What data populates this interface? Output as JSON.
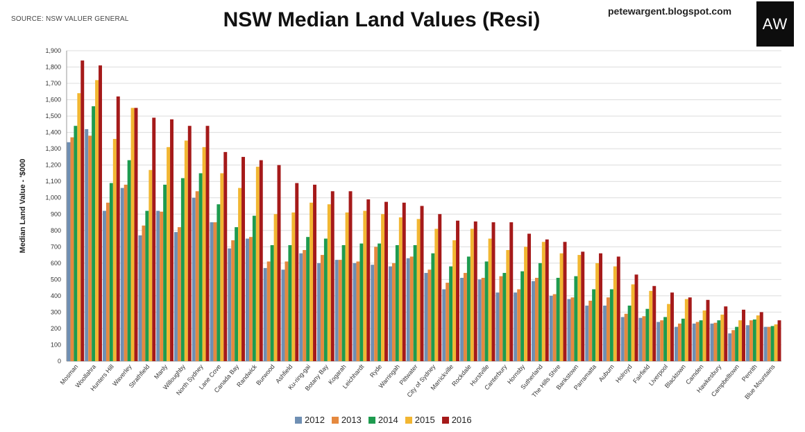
{
  "header": {
    "source": "SOURCE: NSW VALUER GENERAL",
    "title": "NSW Median Land Values (Resi)",
    "blog": "petewargent.blogspot.com",
    "logo": "AW"
  },
  "colors": {
    "2012": "#6f8fb3",
    "2013": "#e5893f",
    "2014": "#1e9b4f",
    "2015": "#f2b632",
    "2016": "#a51a1a"
  },
  "chart_data": {
    "type": "bar",
    "title": "NSW Median Land Values (Resi)",
    "xlabel": "",
    "ylabel": "Median Land Value - '$000",
    "ylim": [
      0,
      1900
    ],
    "ytick_step": 100,
    "grid": true,
    "legend_position": "bottom",
    "categories": [
      "Mosman",
      "Woollahra",
      "Hunters Hill",
      "Waverley",
      "Strathfield",
      "Manly",
      "Willoughby",
      "North Sydney",
      "Lane Cove",
      "Canada Bay",
      "Randwick",
      "Burwood",
      "Ashfield",
      "Ku-ring-gai",
      "Botany Bay",
      "Kogarah",
      "Leichhardt",
      "Ryde",
      "Warringah",
      "Pittwater",
      "City of Sydney",
      "Marrickville",
      "Rockdale",
      "Hurstville",
      "Canterbury",
      "Hornsby",
      "Sutherland",
      "The Hills Shire",
      "Bankstown",
      "Parramatta",
      "Auburn",
      "Holroyd",
      "Fairfield",
      "Liverpool",
      "Blacktown",
      "Camden",
      "Hawkesbury",
      "Campbelltown",
      "Penrith",
      "Blue Mountains"
    ],
    "series": [
      {
        "name": "2012",
        "values": [
          1340,
          1420,
          920,
          1060,
          770,
          920,
          790,
          1000,
          850,
          690,
          750,
          570,
          560,
          660,
          600,
          620,
          600,
          590,
          580,
          630,
          540,
          440,
          510,
          500,
          420,
          420,
          490,
          400,
          380,
          340,
          340,
          270,
          265,
          240,
          210,
          230,
          230,
          170,
          220,
          210
        ]
      },
      {
        "name": "2013",
        "values": [
          1370,
          1380,
          970,
          1080,
          830,
          915,
          820,
          1040,
          850,
          740,
          760,
          610,
          610,
          680,
          650,
          620,
          610,
          700,
          600,
          640,
          560,
          480,
          540,
          510,
          520,
          440,
          510,
          410,
          390,
          370,
          390,
          290,
          275,
          250,
          230,
          240,
          235,
          190,
          250,
          210
        ]
      },
      {
        "name": "2014",
        "values": [
          1440,
          1560,
          1090,
          1230,
          920,
          1080,
          1120,
          1150,
          960,
          820,
          890,
          710,
          710,
          760,
          750,
          710,
          720,
          720,
          710,
          710,
          660,
          580,
          640,
          610,
          540,
          550,
          600,
          510,
          520,
          440,
          440,
          340,
          320,
          270,
          260,
          250,
          250,
          210,
          255,
          215
        ]
      },
      {
        "name": "2015",
        "values": [
          1640,
          1720,
          1360,
          1550,
          1170,
          1310,
          1350,
          1310,
          1150,
          1060,
          1190,
          900,
          910,
          970,
          960,
          910,
          920,
          900,
          880,
          870,
          810,
          740,
          810,
          750,
          680,
          700,
          730,
          660,
          650,
          600,
          580,
          470,
          430,
          350,
          380,
          310,
          285,
          250,
          280,
          225
        ]
      },
      {
        "name": "2016",
        "values": [
          1840,
          1810,
          1620,
          1550,
          1490,
          1480,
          1440,
          1440,
          1280,
          1250,
          1230,
          1200,
          1090,
          1080,
          1040,
          1040,
          990,
          975,
          970,
          950,
          900,
          860,
          855,
          850,
          850,
          780,
          745,
          730,
          670,
          660,
          640,
          530,
          460,
          420,
          390,
          375,
          335,
          315,
          300,
          250
        ]
      }
    ]
  }
}
